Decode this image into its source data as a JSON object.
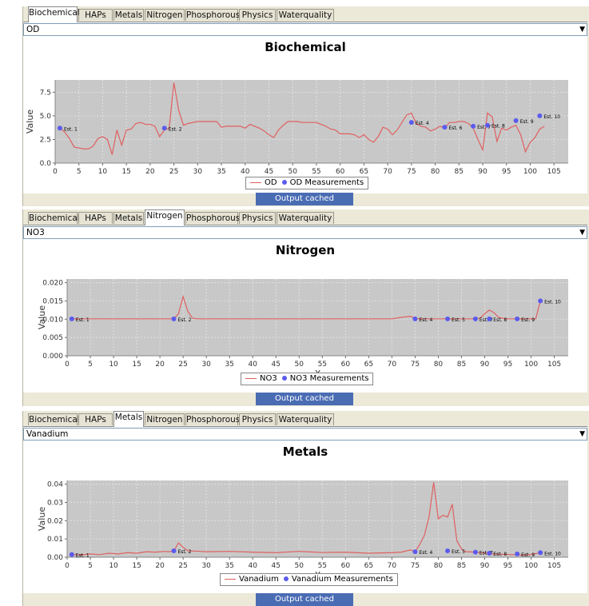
{
  "tabs": [
    "Biochemical",
    "HAPs",
    "Metals",
    "Nitrogen",
    "Phosphorous",
    "Physics",
    "Waterquality"
  ],
  "colors": {
    "line": "#e06060",
    "marker": "#5b5bef",
    "plot_bg": "#c8c8c8",
    "grid": "#e0e0e0",
    "status_bg": "#4a6cb3"
  },
  "panels": [
    {
      "active_tab": "Biochemical",
      "select_value": "OD",
      "title": "Biochemical",
      "legend_line": "OD",
      "legend_points": "OD Measurements",
      "status": "Output cached"
    },
    {
      "active_tab": "Nitrogen",
      "select_value": "NO3",
      "title": "Nitrogen",
      "legend_line": "NO3",
      "legend_points": "NO3 Measurements",
      "status": "Output cached"
    },
    {
      "active_tab": "Metals",
      "select_value": "Vanadium",
      "title": "Metals",
      "legend_line": "Vanadium",
      "legend_points": "Vanadium Measurements",
      "status": "Output cached"
    }
  ],
  "chart_data": [
    {
      "type": "line",
      "title": "Biochemical",
      "xlabel": "X",
      "ylabel": "Value",
      "xlim": [
        0,
        108
      ],
      "ylim": [
        0,
        8.8
      ],
      "x_ticks": [
        0,
        5,
        10,
        15,
        20,
        25,
        30,
        35,
        40,
        45,
        50,
        55,
        60,
        65,
        70,
        75,
        80,
        85,
        90,
        95,
        100,
        105
      ],
      "y_ticks": [
        "0.0",
        "2.5",
        "5.0",
        "7.5"
      ],
      "y_tick_values": [
        0,
        2.5,
        5.0,
        7.5
      ],
      "grid": true,
      "legend": "bottom",
      "series": [
        {
          "name": "OD",
          "kind": "line",
          "x": [
            1,
            2,
            3,
            4,
            5,
            6,
            7,
            8,
            9,
            10,
            11,
            12,
            13,
            14,
            15,
            16,
            17,
            18,
            19,
            20,
            21,
            22,
            23,
            24,
            25,
            26,
            27,
            28,
            29,
            30,
            31,
            32,
            33,
            34,
            35,
            36,
            37,
            38,
            39,
            40,
            41,
            42,
            43,
            44,
            45,
            46,
            47,
            48,
            49,
            50,
            51,
            52,
            53,
            54,
            55,
            56,
            57,
            58,
            59,
            60,
            61,
            62,
            63,
            64,
            65,
            66,
            67,
            68,
            69,
            70,
            71,
            72,
            73,
            74,
            75,
            76,
            77,
            78,
            79,
            80,
            81,
            82,
            83,
            84,
            85,
            86,
            87,
            88,
            89,
            90,
            91,
            92,
            93,
            94,
            95,
            96,
            97,
            98,
            99,
            100,
            101,
            102,
            103
          ],
          "y": [
            3.7,
            3.3,
            2.6,
            1.7,
            1.6,
            1.5,
            1.5,
            1.8,
            2.6,
            2.8,
            2.5,
            0.9,
            3.5,
            1.9,
            3.5,
            3.6,
            4.2,
            4.3,
            4.1,
            4.1,
            3.9,
            2.8,
            3.5,
            3.7,
            8.5,
            5.6,
            4.0,
            4.2,
            4.3,
            4.4,
            4.4,
            4.4,
            4.4,
            4.4,
            3.8,
            3.9,
            3.9,
            3.9,
            3.9,
            3.7,
            4.1,
            3.9,
            3.7,
            3.4,
            3.0,
            2.7,
            3.5,
            4.0,
            4.4,
            4.4,
            4.4,
            4.3,
            4.3,
            4.3,
            4.3,
            4.1,
            3.9,
            3.6,
            3.5,
            3.1,
            3.1,
            3.1,
            3.0,
            2.7,
            3.0,
            2.5,
            2.2,
            2.8,
            3.8,
            3.6,
            3.0,
            3.5,
            4.3,
            5.1,
            5.3,
            4.2,
            3.9,
            3.8,
            3.4,
            3.6,
            3.9,
            3.7,
            4.3,
            4.3,
            4.4,
            4.4,
            4.2,
            3.7,
            2.5,
            1.4,
            5.3,
            4.9,
            2.3,
            3.7,
            3.5,
            3.8,
            4.0,
            3.0,
            1.2,
            2.2,
            2.7,
            3.6,
            3.9
          ]
        },
        {
          "name": "OD Measurements",
          "kind": "points",
          "x": [
            1,
            23,
            75,
            82,
            88,
            91,
            97,
            102
          ],
          "y": [
            3.7,
            3.7,
            4.3,
            3.8,
            3.9,
            4.0,
            4.5,
            5.0
          ],
          "labels": [
            "Est. 1",
            "Est. 2",
            "Est. 4",
            "Est. 6",
            "Est. 7",
            "Est. 8",
            "Est. 9",
            "Est. 10"
          ]
        }
      ]
    },
    {
      "type": "line",
      "title": "Nitrogen",
      "xlabel": "X",
      "ylabel": "Value",
      "xlim": [
        0,
        108
      ],
      "ylim": [
        0,
        0.021
      ],
      "x_ticks": [
        0,
        5,
        10,
        15,
        20,
        25,
        30,
        35,
        40,
        45,
        50,
        55,
        60,
        65,
        70,
        75,
        80,
        85,
        90,
        95,
        100,
        105
      ],
      "y_ticks": [
        "0.000",
        "0.005",
        "0.010",
        "0.015",
        "0.020"
      ],
      "y_tick_values": [
        0,
        0.005,
        0.01,
        0.015,
        0.02
      ],
      "grid": true,
      "legend": "bottom",
      "series": [
        {
          "name": "NO3",
          "kind": "line",
          "x": [
            1,
            5,
            10,
            15,
            20,
            23,
            24,
            25,
            26,
            27,
            28,
            30,
            40,
            50,
            60,
            70,
            72,
            74,
            75,
            76,
            80,
            85,
            88,
            89,
            90,
            91,
            92,
            93,
            94,
            95,
            96,
            97,
            98,
            99,
            100,
            101,
            102
          ],
          "y": [
            0.0101,
            0.0101,
            0.0101,
            0.0101,
            0.0101,
            0.0101,
            0.0115,
            0.0162,
            0.0122,
            0.0103,
            0.0101,
            0.0101,
            0.0101,
            0.0101,
            0.0101,
            0.0101,
            0.0105,
            0.0108,
            0.0102,
            0.0101,
            0.0101,
            0.0101,
            0.0101,
            0.0103,
            0.0115,
            0.0125,
            0.0118,
            0.0105,
            0.0102,
            0.0101,
            0.0101,
            0.0101,
            0.0101,
            0.0101,
            0.0101,
            0.0101,
            0.015
          ]
        },
        {
          "name": "NO3 Measurements",
          "kind": "points",
          "x": [
            1,
            23,
            75,
            82,
            88,
            91,
            97,
            102
          ],
          "y": [
            0.0101,
            0.0101,
            0.0101,
            0.0101,
            0.0101,
            0.0101,
            0.0101,
            0.015
          ],
          "labels": [
            "Est. 1",
            "Est. 2",
            "Est. 4",
            "Est. 5",
            "Est. 7",
            "Est. 8",
            "Est. 9",
            "Est. 10"
          ]
        }
      ]
    },
    {
      "type": "line",
      "title": "Metals",
      "xlabel": "X",
      "ylabel": "Value",
      "xlim": [
        0,
        108
      ],
      "ylim": [
        0,
        0.042
      ],
      "x_ticks": [
        0,
        5,
        10,
        15,
        20,
        25,
        30,
        35,
        40,
        45,
        50,
        55,
        60,
        65,
        70,
        75,
        80,
        85,
        90,
        95,
        100,
        105
      ],
      "y_ticks": [
        "0.00",
        "0.01",
        "0.02",
        "0.03",
        "0.04"
      ],
      "y_tick_values": [
        0,
        0.01,
        0.02,
        0.03,
        0.04
      ],
      "grid": true,
      "legend": "bottom",
      "series": [
        {
          "name": "Vanadium",
          "kind": "line",
          "x": [
            1,
            3,
            5,
            7,
            9,
            11,
            13,
            15,
            17,
            19,
            21,
            22,
            23,
            24,
            25,
            26,
            28,
            30,
            35,
            40,
            45,
            50,
            55,
            60,
            65,
            70,
            72,
            74,
            75,
            76,
            77,
            78,
            79,
            80,
            81,
            82,
            83,
            84,
            85,
            86,
            88,
            90,
            92,
            95,
            98,
            100,
            102
          ],
          "y": [
            0.0015,
            0.0012,
            0.0018,
            0.0014,
            0.0022,
            0.0018,
            0.0025,
            0.0022,
            0.003,
            0.0028,
            0.0032,
            0.003,
            0.0035,
            0.0078,
            0.0055,
            0.0035,
            0.0033,
            0.003,
            0.0032,
            0.0028,
            0.0025,
            0.0032,
            0.0026,
            0.0028,
            0.0022,
            0.0025,
            0.0028,
            0.004,
            0.003,
            0.007,
            0.012,
            0.022,
            0.041,
            0.021,
            0.023,
            0.022,
            0.029,
            0.009,
            0.0045,
            0.003,
            0.0028,
            0.0022,
            0.0018,
            0.0015,
            0.0012,
            0.0015,
            0.0025
          ]
        },
        {
          "name": "Vanadium Measurements",
          "kind": "points",
          "x": [
            1,
            23,
            75,
            82,
            88,
            91,
            97,
            102
          ],
          "y": [
            0.0015,
            0.0035,
            0.003,
            0.0035,
            0.0028,
            0.0022,
            0.0018,
            0.0025
          ],
          "labels": [
            "Est. 1",
            "Est. 2",
            "Est. 4",
            "Est. 5",
            "Est. 7",
            "Est. 8",
            "Est. 9",
            "Est. 10"
          ]
        }
      ]
    }
  ]
}
